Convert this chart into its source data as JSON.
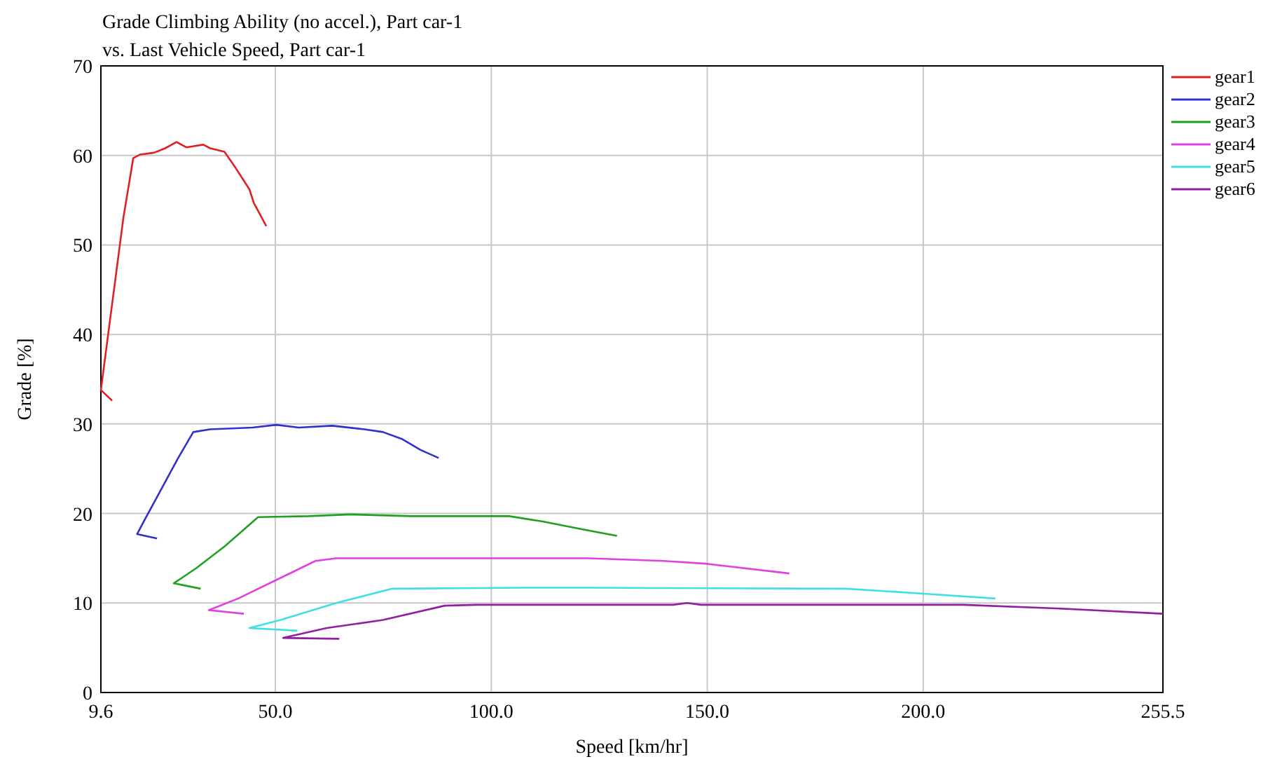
{
  "chart_data": {
    "type": "line",
    "title": "Grade Climbing Ability (no accel.), Part car-1",
    "subtitle": "vs. Last Vehicle Speed, Part car-1",
    "xlabel": "Speed [km/hr]",
    "ylabel": "Grade [%]",
    "xlim": [
      9.6,
      255.5
    ],
    "xticks": [
      9.6,
      {
        "value": 50,
        "label": "50.0"
      },
      {
        "value": 100,
        "label": "100.0"
      },
      {
        "value": 150,
        "label": "150.0"
      },
      {
        "value": 200,
        "label": "200.0"
      },
      255.5
    ],
    "ylim": [
      0,
      70
    ],
    "yticks": [
      0,
      10,
      20,
      30,
      40,
      50,
      60,
      70
    ],
    "grid": true,
    "legend": "top right",
    "marker": "none",
    "line_style": "solid",
    "series": [
      {
        "name": "gear1",
        "color": "#e02020",
        "x": [
          12.2,
          9.6,
          12.8,
          14.8,
          17.1,
          18.7,
          21.9,
          24.5,
          27.1,
          29.4,
          33.3,
          34.9,
          38.2,
          40.8,
          44.0,
          45.0,
          47.9
        ],
        "values": [
          32.6,
          33.8,
          45.6,
          53.0,
          59.7,
          60.1,
          60.3,
          60.8,
          61.5,
          60.9,
          61.2,
          60.8,
          60.4,
          58.6,
          56.2,
          54.7,
          52.1
        ]
      },
      {
        "name": "gear2",
        "color": "#3030d0",
        "x": [
          22.6,
          18.0,
          19.3,
          27.5,
          31.0,
          34.9,
          44.7,
          50.2,
          55.4,
          63.2,
          70.6,
          74.9,
          79.4,
          83.6,
          87.8
        ],
        "values": [
          17.2,
          17.7,
          18.9,
          26.2,
          29.1,
          29.4,
          29.6,
          29.9,
          29.6,
          29.8,
          29.4,
          29.1,
          28.3,
          27.1,
          26.2
        ]
      },
      {
        "name": "gear3",
        "color": "#20a020",
        "x": [
          32.7,
          26.5,
          31.7,
          38.2,
          46.0,
          57.7,
          67.4,
          81.4,
          92.4,
          104.1,
          111.9,
          120.3,
          129.1
        ],
        "values": [
          11.6,
          12.2,
          13.9,
          16.3,
          19.6,
          19.7,
          19.9,
          19.7,
          19.7,
          19.7,
          19.1,
          18.3,
          17.5
        ]
      },
      {
        "name": "gear4",
        "color": "#e040e0",
        "x": [
          42.7,
          34.6,
          41.4,
          51.2,
          59.3,
          64.1,
          87.8,
          104.1,
          122.6,
          139.8,
          149.5,
          169.0
        ],
        "values": [
          8.8,
          9.2,
          10.5,
          12.8,
          14.7,
          15.0,
          15.0,
          15.0,
          15.0,
          14.7,
          14.4,
          13.3
        ]
      },
      {
        "name": "gear5",
        "color": "#40e0e0",
        "x": [
          55.1,
          44.0,
          51.2,
          64.1,
          77.1,
          107.3,
          122.6,
          182.0,
          198.2,
          216.7
        ],
        "values": [
          6.9,
          7.2,
          8.1,
          10.0,
          11.6,
          11.7,
          11.7,
          11.6,
          11.1,
          10.5
        ]
      },
      {
        "name": "gear6",
        "color": "#9020a0",
        "x": [
          64.8,
          51.8,
          61.9,
          74.9,
          89.2,
          96.6,
          142.1,
          145.3,
          148.6,
          209.3,
          230.7,
          255.5
        ],
        "values": [
          6.0,
          6.1,
          7.2,
          8.1,
          9.7,
          9.8,
          9.8,
          10.0,
          9.8,
          9.8,
          9.4,
          8.8
        ]
      }
    ]
  }
}
